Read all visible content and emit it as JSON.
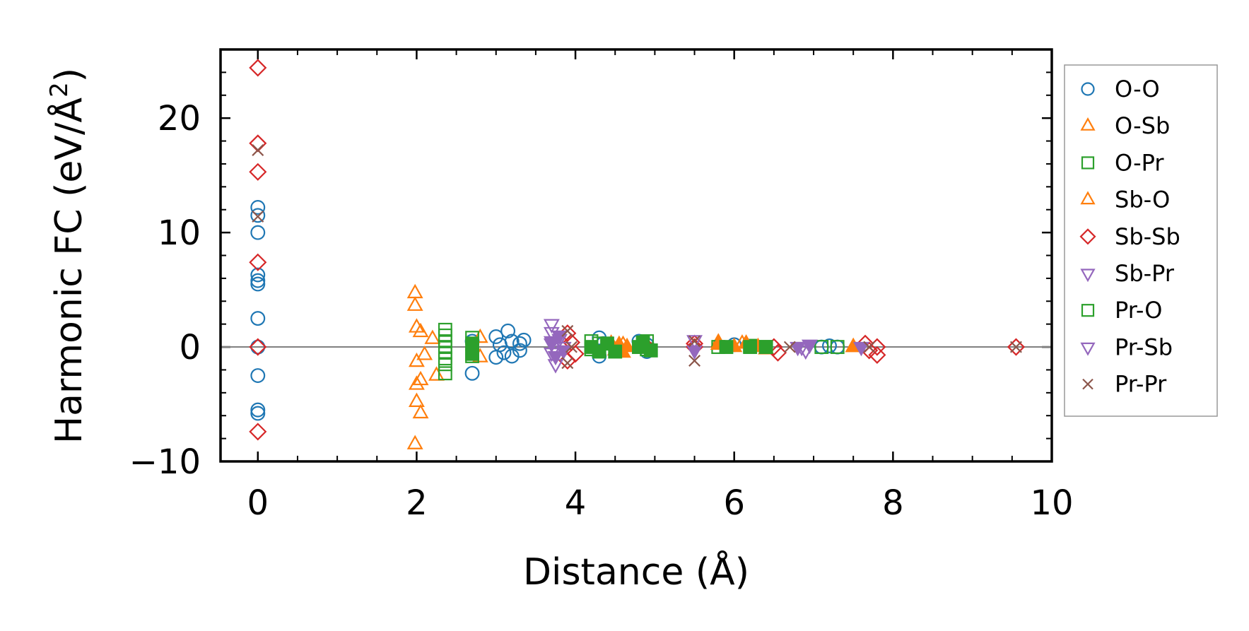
{
  "chart_data": {
    "type": "scatter",
    "title": "",
    "xlabel": "Distance (Å)",
    "ylabel_main": "Harmonic FC (eV/Å",
    "ylabel_sup": "2",
    "ylabel_close": ")",
    "xlim": [
      -0.47,
      10.0
    ],
    "ylim": [
      -10,
      26
    ],
    "xticks": [
      {
        "value": 0,
        "label": "0"
      },
      {
        "value": 2,
        "label": "2"
      },
      {
        "value": 4,
        "label": "4"
      },
      {
        "value": 6,
        "label": "6"
      },
      {
        "value": 8,
        "label": "8"
      },
      {
        "value": 10,
        "label": "10"
      }
    ],
    "yticks": [
      {
        "value": -10,
        "label": "−10"
      },
      {
        "value": 0,
        "label": "0"
      },
      {
        "value": 10,
        "label": "10"
      },
      {
        "value": 20,
        "label": "20"
      }
    ],
    "x_minor_step": 0.5,
    "y_minor_step": 2,
    "reference_line_y": 0,
    "legend_position": "outside-right",
    "series": [
      {
        "name": "O-O",
        "marker": "circle",
        "color": "#1f77b4",
        "points": [
          [
            0,
            12.2
          ],
          [
            0,
            11.5
          ],
          [
            0,
            10
          ],
          [
            0,
            6.3
          ],
          [
            0,
            5.8
          ],
          [
            0,
            5.5
          ],
          [
            0,
            2.5
          ],
          [
            0,
            0
          ],
          [
            0,
            -2.5
          ],
          [
            0,
            -5.5
          ],
          [
            0,
            -5.8
          ],
          [
            2.7,
            -2.3
          ],
          [
            2.7,
            0.5
          ],
          [
            3.0,
            -0.9
          ],
          [
            3.0,
            0.9
          ],
          [
            3.05,
            0.2
          ],
          [
            3.1,
            -0.5
          ],
          [
            3.15,
            1.4
          ],
          [
            3.2,
            0.5
          ],
          [
            3.2,
            -0.8
          ],
          [
            3.3,
            0.3
          ],
          [
            3.3,
            -0.3
          ],
          [
            3.35,
            0.6
          ],
          [
            4.3,
            0.8
          ],
          [
            4.3,
            -0.8
          ],
          [
            4.35,
            0.3
          ],
          [
            4.8,
            0.5
          ],
          [
            4.9,
            0.2
          ],
          [
            4.9,
            -0.4
          ],
          [
            6.0,
            0.2
          ],
          [
            7.1,
            0
          ],
          [
            7.2,
            0.1
          ],
          [
            7.3,
            0
          ]
        ]
      },
      {
        "name": "O-Sb",
        "marker": "triangle-up",
        "color": "#ff7f0e",
        "points": [
          [
            1.98,
            4.7
          ],
          [
            1.98,
            3.6
          ],
          [
            2.0,
            1.7
          ],
          [
            2.0,
            -1.3
          ],
          [
            2.0,
            -3.3
          ],
          [
            2.0,
            -4.8
          ],
          [
            1.98,
            -8.5
          ],
          [
            2.05,
            -2.9
          ],
          [
            2.05,
            -5.8
          ],
          [
            2.05,
            1.3
          ],
          [
            2.1,
            -0.7
          ],
          [
            2.2,
            0.7
          ],
          [
            2.25,
            -2.5
          ],
          [
            2.8,
            0.8
          ],
          [
            2.8,
            -0.9
          ],
          [
            4.6,
            0.2
          ],
          [
            5.8,
            0.4
          ],
          [
            6.1,
            0.3
          ],
          [
            7.5,
            0
          ]
        ]
      },
      {
        "name": "O-Pr",
        "marker": "square",
        "color": "#2ca02c",
        "points": [
          [
            2.36,
            1.5
          ],
          [
            2.36,
            1.0
          ],
          [
            2.36,
            0.5
          ],
          [
            2.36,
            0
          ],
          [
            2.36,
            -0.5
          ],
          [
            2.36,
            -1.0
          ],
          [
            2.36,
            -1.5
          ],
          [
            2.36,
            -2.3
          ],
          [
            2.7,
            0.8
          ],
          [
            2.7,
            -0.8
          ],
          [
            4.2,
            0.5
          ],
          [
            4.2,
            -0.2
          ],
          [
            4.3,
            0.3
          ],
          [
            4.9,
            0.5
          ],
          [
            4.9,
            -0.2
          ],
          [
            5.8,
            0
          ],
          [
            6.2,
            0.1
          ],
          [
            6.4,
            0
          ],
          [
            7.1,
            0
          ],
          [
            7.3,
            0
          ]
        ]
      },
      {
        "name": "Sb-O",
        "marker": "triangle-up-filled",
        "color": "#ff7f0e",
        "points": [
          [
            4.45,
            0.3
          ],
          [
            4.5,
            -0.3
          ],
          [
            4.55,
            0.2
          ],
          [
            4.6,
            -0.5
          ],
          [
            4.65,
            0
          ],
          [
            5.8,
            0.2
          ],
          [
            6.0,
            0
          ],
          [
            6.15,
            0.3
          ],
          [
            6.3,
            0
          ],
          [
            6.4,
            -0.2
          ],
          [
            7.5,
            0
          ]
        ]
      },
      {
        "name": "Sb-Sb",
        "marker": "diamond",
        "color": "#d62728",
        "points": [
          [
            0,
            24.4
          ],
          [
            0,
            17.8
          ],
          [
            0,
            15.3
          ],
          [
            0,
            7.4
          ],
          [
            0,
            0
          ],
          [
            0,
            -7.4
          ],
          [
            3.9,
            1.2
          ],
          [
            3.9,
            -1.2
          ],
          [
            3.95,
            0.4
          ],
          [
            4.0,
            -0.6
          ],
          [
            4.9,
            0
          ],
          [
            5.5,
            0
          ],
          [
            5.5,
            0.3
          ],
          [
            6.5,
            0
          ],
          [
            6.55,
            -0.5
          ],
          [
            7.65,
            0.3
          ],
          [
            7.7,
            -0.3
          ],
          [
            7.8,
            0
          ],
          [
            7.8,
            -0.7
          ],
          [
            9.55,
            0
          ]
        ]
      },
      {
        "name": "Sb-Pr",
        "marker": "triangle-down",
        "color": "#9467bd",
        "points": [
          [
            3.7,
            2.0
          ],
          [
            3.7,
            1.3
          ],
          [
            3.7,
            0.3
          ],
          [
            3.7,
            -0.5
          ],
          [
            3.75,
            -1.5
          ],
          [
            3.8,
            0.7
          ],
          [
            3.85,
            0
          ],
          [
            5.5,
            0.6
          ],
          [
            6.85,
            0
          ],
          [
            6.9,
            -0.3
          ]
        ]
      },
      {
        "name": "Pr-O",
        "marker": "square-filled",
        "color": "#2ca02c",
        "points": [
          [
            2.7,
            0.3
          ],
          [
            2.7,
            -0.6
          ],
          [
            4.2,
            0
          ],
          [
            4.3,
            -0.4
          ],
          [
            4.4,
            0.3
          ],
          [
            4.5,
            -0.4
          ],
          [
            4.8,
            0
          ],
          [
            4.85,
            0.4
          ],
          [
            4.95,
            -0.3
          ],
          [
            5.9,
            0
          ],
          [
            6.2,
            0
          ],
          [
            6.4,
            0
          ]
        ]
      },
      {
        "name": "Pr-Sb",
        "marker": "triangle-down-filled",
        "color": "#9467bd",
        "points": [
          [
            3.7,
            0.5
          ],
          [
            3.75,
            -0.8
          ],
          [
            3.8,
            1.0
          ],
          [
            3.85,
            -0.3
          ],
          [
            5.5,
            -0.3
          ],
          [
            6.8,
            0
          ],
          [
            6.95,
            0.2
          ],
          [
            7.6,
            0
          ]
        ]
      },
      {
        "name": "Pr-Pr",
        "marker": "x",
        "color": "#8c564b",
        "points": [
          [
            0,
            17.2
          ],
          [
            0,
            11.4
          ],
          [
            3.9,
            1.4
          ],
          [
            3.9,
            -1.4
          ],
          [
            3.95,
            0
          ],
          [
            5.5,
            -1.2
          ],
          [
            5.5,
            0.5
          ],
          [
            6.7,
            0
          ],
          [
            7.7,
            0
          ],
          [
            9.55,
            0
          ]
        ]
      }
    ]
  }
}
